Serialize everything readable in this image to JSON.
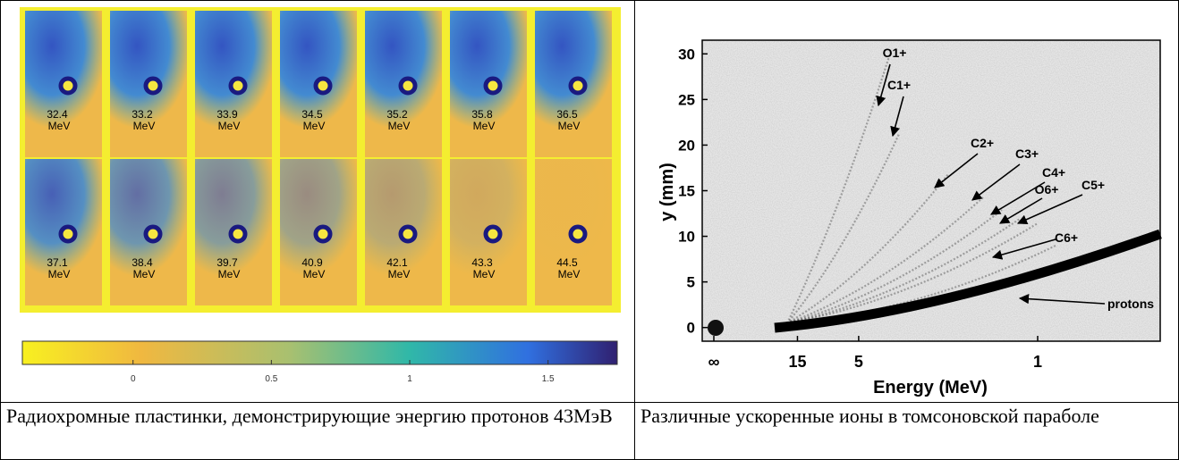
{
  "left": {
    "films": [
      "32.4",
      "33.2",
      "33.9",
      "34.5",
      "35.2",
      "35.8",
      "36.5",
      "37.1",
      "38.4",
      "39.7",
      "40.9",
      "42.1",
      "43.3",
      "44.5"
    ],
    "unit": "MeV",
    "colorbar": {
      "lim": [
        -0.4,
        1.75
      ],
      "ticks": [
        0,
        0.5,
        1,
        1.5
      ]
    },
    "caption": "Радиохромные пластинки, демонстрирующие энергию протонов 43МэВ"
  },
  "right": {
    "plot": {
      "ylabel": "y (mm)",
      "xlabel": "Energy (MeV)",
      "x_scale": "inverse-sqrt",
      "ylim": [
        -1.5,
        31.5
      ],
      "yticks": [
        0,
        5,
        10,
        15,
        20,
        25,
        30
      ],
      "xticks": [
        {
          "value": null,
          "label": "∞"
        },
        15,
        5,
        1
      ],
      "annotations": [
        "O1+",
        "C1+",
        "C2+",
        "C3+",
        "C4+",
        "O6+",
        "C5+",
        "C6+",
        "protons"
      ]
    },
    "caption": "Различные ускоренные ионы в томсоновской параболе"
  }
}
